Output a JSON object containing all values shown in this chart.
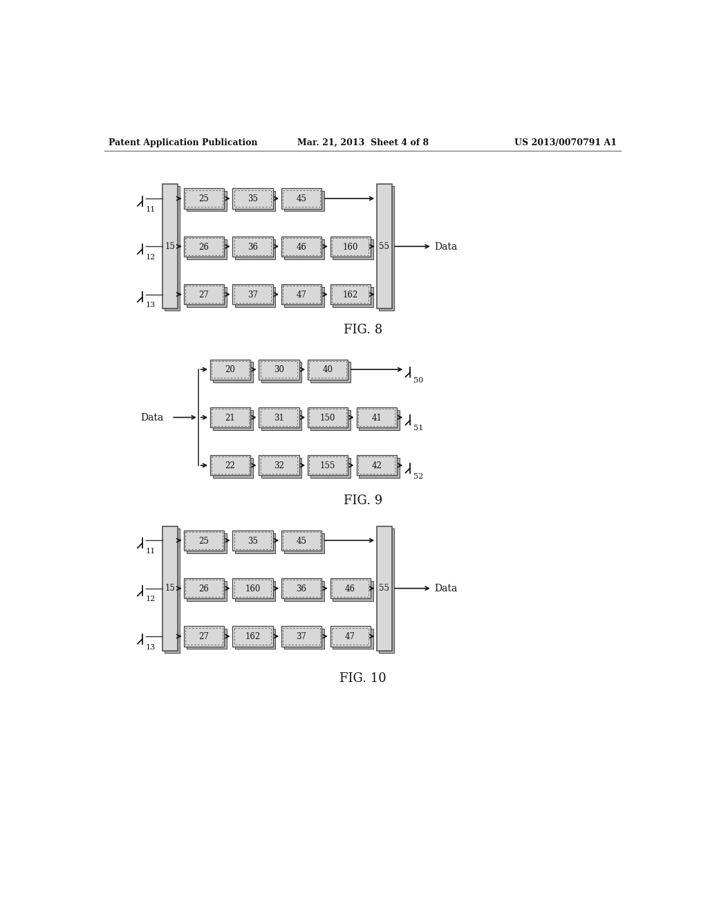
{
  "header_left": "Patent Application Publication",
  "header_mid": "Mar. 21, 2013  Sheet 4 of 8",
  "header_right": "US 2013/0070791 A1",
  "fig8_label": "FIG. 8",
  "fig9_label": "FIG. 9",
  "fig10_label": "FIG. 10",
  "bg_color": "#ffffff",
  "box_face": "#d8d8d8",
  "box_edge": "#444444",
  "shadow_color": "#b0b0b0",
  "text_color": "#111111",
  "arrow_color": "#111111",
  "line_color": "#333333"
}
